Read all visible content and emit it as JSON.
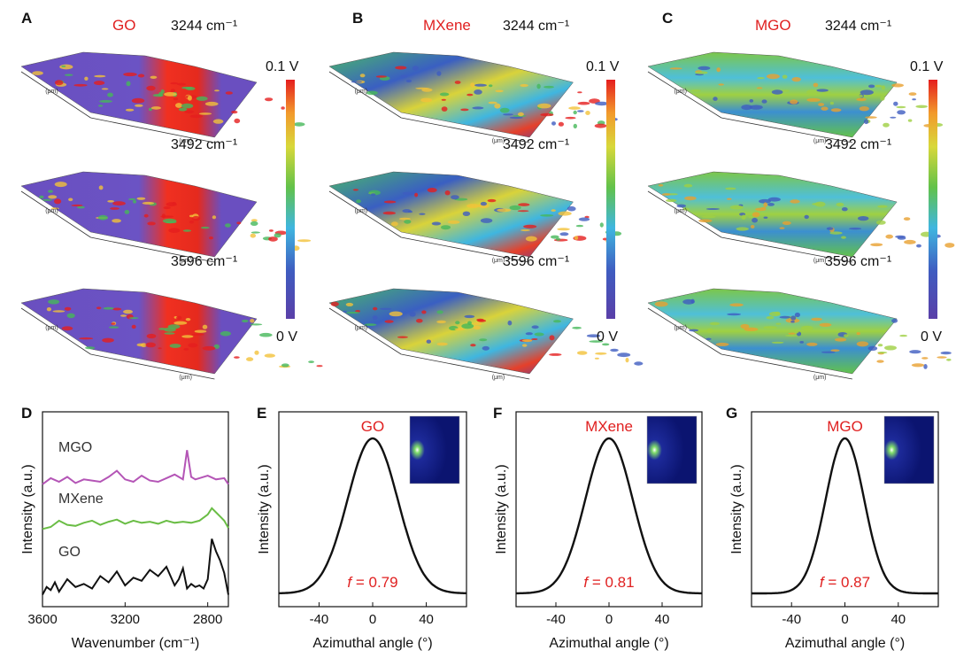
{
  "panels": {
    "A": "A",
    "B": "B",
    "C": "C",
    "D": "D",
    "E": "E",
    "F": "F",
    "G": "G"
  },
  "maps": [
    {
      "sample": "GO",
      "palette": "go"
    },
    {
      "sample": "MXene",
      "palette": "mx"
    },
    {
      "sample": "MGO",
      "palette": "mg"
    }
  ],
  "wavenumbers": [
    "3244 cm⁻¹",
    "3492 cm⁻¹",
    "3596 cm⁻¹"
  ],
  "colorbar": {
    "max": "0.1 V",
    "min": "0 V"
  },
  "map_axis_unit": "(μm)",
  "colors": {
    "red_label": "#e02020",
    "go": "#111111",
    "mxene": "#6abd45",
    "mgo": "#b455b6",
    "curve": "#111111"
  },
  "chart_data": [
    {
      "type": "line",
      "panel": "D",
      "xlabel": "Wavenumber (cm⁻¹)",
      "ylabel": "Intensity (a.u.)",
      "xlim": [
        3600,
        2700
      ],
      "xticks": [
        3600,
        3200,
        2800
      ],
      "series": [
        {
          "name": "MGO",
          "offset": 2.0,
          "x": [
            3600,
            3560,
            3520,
            3480,
            3440,
            3400,
            3360,
            3320,
            3280,
            3240,
            3200,
            3160,
            3120,
            3080,
            3040,
            3000,
            2960,
            2920,
            2900,
            2880,
            2860,
            2840,
            2800,
            2760,
            2720,
            2700
          ],
          "y": [
            0.3,
            0.55,
            0.4,
            0.6,
            0.35,
            0.5,
            0.45,
            0.4,
            0.6,
            0.85,
            0.5,
            0.4,
            0.65,
            0.45,
            0.4,
            0.55,
            0.7,
            0.5,
            1.7,
            0.6,
            0.5,
            0.55,
            0.65,
            0.5,
            0.55,
            0.3
          ]
        },
        {
          "name": "MXene",
          "offset": 1.0,
          "x": [
            3600,
            3560,
            3520,
            3480,
            3440,
            3400,
            3360,
            3320,
            3280,
            3240,
            3200,
            3160,
            3120,
            3080,
            3040,
            3000,
            2960,
            2920,
            2880,
            2840,
            2800,
            2780,
            2760,
            2740,
            2720,
            2700
          ],
          "y": [
            0.2,
            0.3,
            0.6,
            0.4,
            0.35,
            0.5,
            0.6,
            0.4,
            0.55,
            0.65,
            0.45,
            0.6,
            0.5,
            0.55,
            0.45,
            0.6,
            0.5,
            0.55,
            0.5,
            0.6,
            0.9,
            1.2,
            1.0,
            0.8,
            0.6,
            0.25
          ]
        },
        {
          "name": "GO",
          "offset": 0.0,
          "x": [
            3600,
            3580,
            3560,
            3540,
            3520,
            3480,
            3440,
            3400,
            3360,
            3320,
            3280,
            3240,
            3200,
            3160,
            3120,
            3080,
            3040,
            3000,
            2960,
            2940,
            2920,
            2900,
            2880,
            2860,
            2840,
            2820,
            2800,
            2780,
            2760,
            2740,
            2720,
            2700
          ],
          "y": [
            0.1,
            0.35,
            0.25,
            0.5,
            0.2,
            0.6,
            0.35,
            0.45,
            0.3,
            0.7,
            0.5,
            0.85,
            0.4,
            0.65,
            0.55,
            0.9,
            0.7,
            1.0,
            0.4,
            0.6,
            0.95,
            0.3,
            0.45,
            0.35,
            0.4,
            0.3,
            0.6,
            1.9,
            1.5,
            1.2,
            0.8,
            0.1
          ]
        }
      ]
    },
    {
      "type": "line",
      "panel": "E",
      "title": "GO",
      "xlabel": "Azimuthal angle (°)",
      "ylabel": "Intensity (a.u.)",
      "xlim": [
        -70,
        70
      ],
      "xticks": [
        -40,
        0,
        40
      ],
      "f_label": "= 0.79",
      "peak_x": 0,
      "fwhm": 44,
      "baseline": 0.0
    },
    {
      "type": "line",
      "panel": "F",
      "title": "MXene",
      "xlabel": "Azimuthal angle (°)",
      "ylabel": "Intensity (a.u.)",
      "xlim": [
        -70,
        70
      ],
      "xticks": [
        -40,
        0,
        40
      ],
      "f_label": "= 0.81",
      "peak_x": 0,
      "fwhm": 42,
      "baseline": 0.0
    },
    {
      "type": "line",
      "panel": "G",
      "title": "MGO",
      "xlabel": "Azimuthal angle (°)",
      "ylabel": "Intensity (a.u.)",
      "xlim": [
        -70,
        70
      ],
      "xticks": [
        -40,
        0,
        40
      ],
      "f_label": "= 0.87",
      "peak_x": 0,
      "fwhm": 34,
      "baseline": 0.0
    }
  ],
  "f_symbol": "f"
}
